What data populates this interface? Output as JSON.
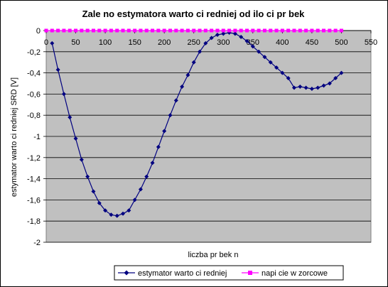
{
  "chart_data": {
    "type": "line",
    "title": "Zale  no    estymatora warto  ci   redniej od ilo  ci pr  bek",
    "xlabel": "liczba pr  bek n",
    "ylabel": "estymator warto ci   redniej SRD [V]",
    "xlim": [
      0,
      550
    ],
    "ylim": [
      -2,
      0
    ],
    "x_ticks": [
      0,
      50,
      100,
      150,
      200,
      250,
      300,
      350,
      400,
      450,
      500,
      550
    ],
    "x_tick_labels": [
      "0",
      "50",
      "100",
      "150",
      "200",
      "250",
      "300",
      "350",
      "400",
      "450",
      "500",
      "550"
    ],
    "y_ticks": [
      0,
      -0.2,
      -0.4,
      -0.6,
      -0.8,
      -1,
      -1.2,
      -1.4,
      -1.6,
      -1.8,
      -2
    ],
    "y_tick_labels": [
      "0",
      "-0,2",
      "-0,4",
      "-0,6",
      "-0,8",
      "-1",
      "-1,2",
      "-1,4",
      "-1,6",
      "-1,8",
      "-2"
    ],
    "grid": "horizontal",
    "plot_background": "#c0c0c0",
    "legend_position": "bottom",
    "series": [
      {
        "name": "estymator warto  ci   redniej",
        "color": "#000080",
        "marker": "diamond",
        "x": [
          10,
          20,
          30,
          40,
          50,
          60,
          70,
          80,
          90,
          100,
          110,
          120,
          130,
          140,
          150,
          160,
          170,
          180,
          190,
          200,
          210,
          220,
          230,
          240,
          250,
          260,
          270,
          280,
          290,
          300,
          310,
          320,
          330,
          340,
          350,
          360,
          370,
          380,
          390,
          400,
          410,
          420,
          430,
          440,
          450,
          460,
          470,
          480,
          490,
          500
        ],
        "y": [
          -0.12,
          -0.37,
          -0.6,
          -0.82,
          -1.02,
          -1.22,
          -1.38,
          -1.52,
          -1.63,
          -1.7,
          -1.74,
          -1.75,
          -1.73,
          -1.7,
          -1.6,
          -1.5,
          -1.38,
          -1.25,
          -1.1,
          -0.95,
          -0.8,
          -0.66,
          -0.53,
          -0.42,
          -0.3,
          -0.2,
          -0.12,
          -0.07,
          -0.04,
          -0.03,
          -0.02,
          -0.03,
          -0.06,
          -0.1,
          -0.15,
          -0.2,
          -0.25,
          -0.3,
          -0.35,
          -0.4,
          -0.45,
          -0.54,
          -0.53,
          -0.54,
          -0.55,
          -0.54,
          -0.52,
          -0.5,
          -0.45,
          -0.4
        ]
      },
      {
        "name": "napi  cie w zorcowe",
        "color": "#ff00ff",
        "marker": "square",
        "x": [
          0,
          10,
          20,
          30,
          40,
          50,
          60,
          70,
          80,
          90,
          100,
          110,
          120,
          130,
          140,
          150,
          160,
          170,
          180,
          190,
          200,
          210,
          220,
          230,
          240,
          250,
          260,
          270,
          280,
          290,
          300,
          310,
          320,
          330,
          340,
          350,
          360,
          370,
          380,
          390,
          400,
          410,
          420,
          430,
          440,
          450,
          460,
          470,
          480,
          490,
          500
        ],
        "y": [
          0,
          0,
          0,
          0,
          0,
          0,
          0,
          0,
          0,
          0,
          0,
          0,
          0,
          0,
          0,
          0,
          0,
          0,
          0,
          0,
          0,
          0,
          0,
          0,
          0,
          0,
          0,
          0,
          0,
          0,
          0,
          0,
          0,
          0,
          0,
          0,
          0,
          0,
          0,
          0,
          0,
          0,
          0,
          0,
          0,
          0,
          0,
          0,
          0,
          0,
          0
        ]
      }
    ]
  }
}
